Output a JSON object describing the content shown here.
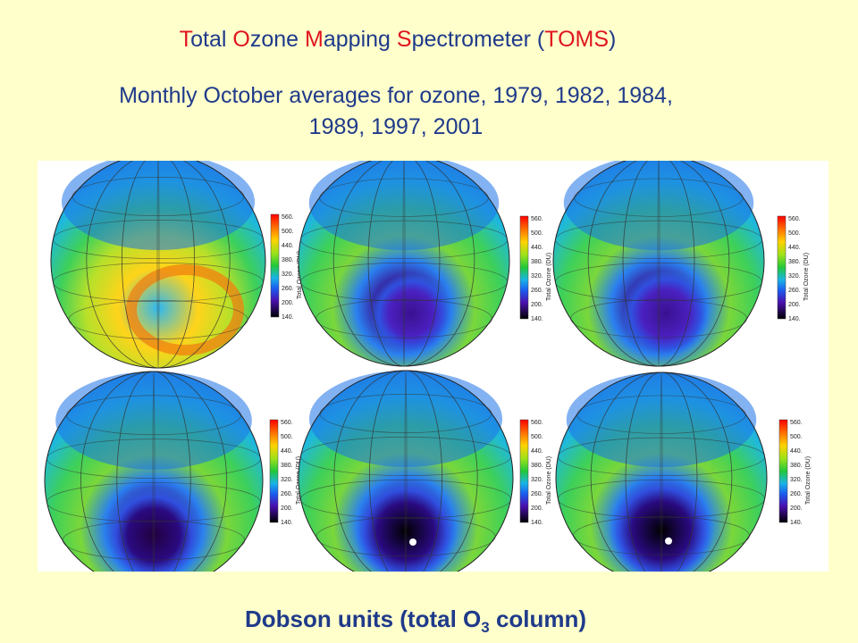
{
  "title": {
    "segments": [
      {
        "text": "T",
        "initial": true
      },
      {
        "text": "otal ",
        "initial": false
      },
      {
        "text": "O",
        "initial": true
      },
      {
        "text": "zone ",
        "initial": false
      },
      {
        "text": "M",
        "initial": true
      },
      {
        "text": "apping ",
        "initial": false
      },
      {
        "text": "S",
        "initial": true
      },
      {
        "text": "pectrometer (",
        "initial": false
      },
      {
        "text": "TOMS",
        "initial": true
      },
      {
        "text": ")",
        "initial": false
      }
    ]
  },
  "subtitle": {
    "line1": "Monthly October averages for ozone, 1979, 1982, 1984,",
    "line2": "1989, 1997, 2001"
  },
  "colorbar": {
    "title": "Total Ozone (DU)",
    "ticks": [
      "560.",
      "500.",
      "440.",
      "380.",
      "320.",
      "260.",
      "200.",
      "140."
    ]
  },
  "maps": [
    {
      "year": 1979,
      "hole_severity": 0.0
    },
    {
      "year": 1982,
      "hole_severity": 0.35
    },
    {
      "year": 1984,
      "hole_severity": 0.5
    },
    {
      "year": 1989,
      "hole_severity": 0.65
    },
    {
      "year": 1997,
      "hole_severity": 0.9
    },
    {
      "year": 2001,
      "hole_severity": 1.0
    }
  ],
  "footer": {
    "prefix": "Dobson units (total O",
    "subscript": "3",
    "suffix": " column)"
  },
  "colors": {
    "text_blue": "#1f3a8a",
    "initial_red": "#e0141e",
    "background": "#ffffcc"
  }
}
